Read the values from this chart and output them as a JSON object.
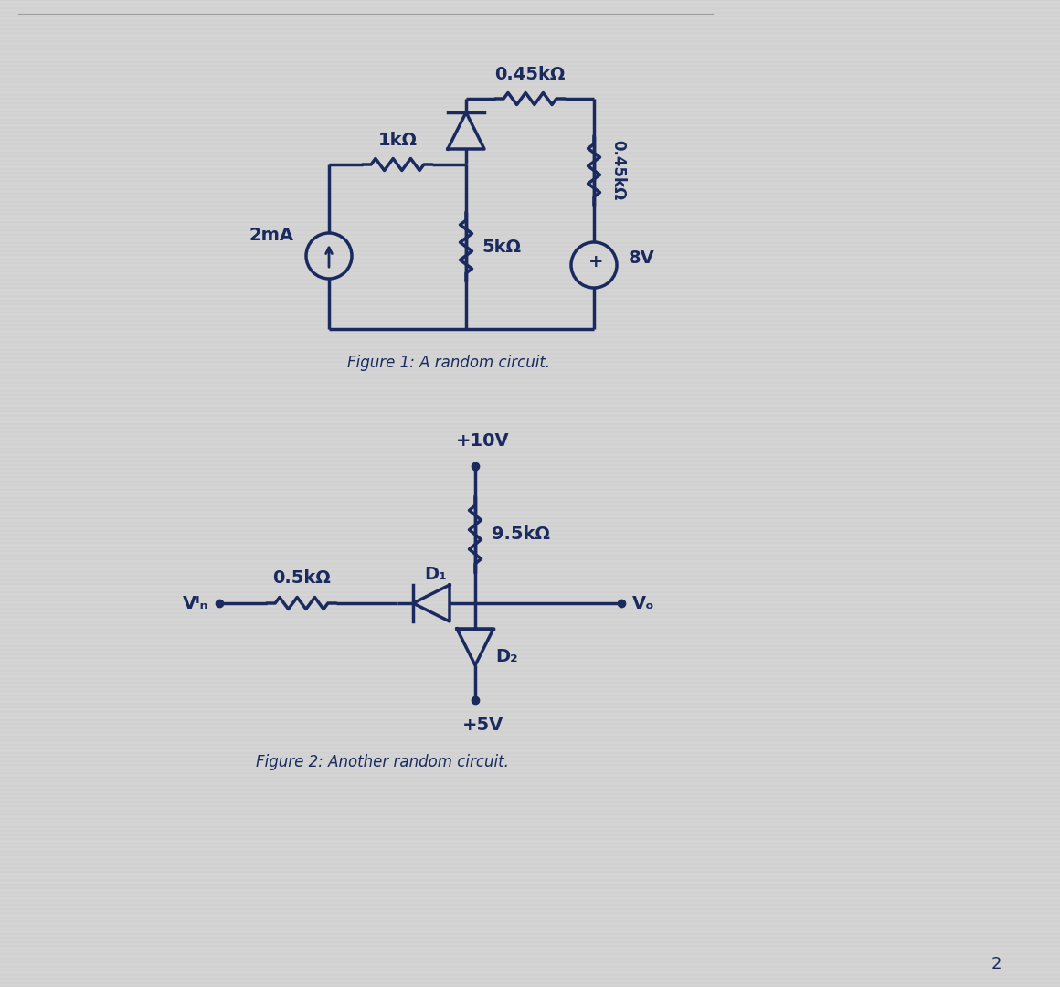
{
  "bg_color": "#d4d4d4",
  "line_color": "#1a2a5e",
  "line_width": 2.5,
  "fig1_caption": "Figure 1: A random circuit.",
  "fig2_caption": "Figure 2: Another random circuit.",
  "page_number": "2",
  "labels": {
    "2mA": "2mA",
    "1k": "1kΩ",
    "0_45k_top": "0.45kΩ",
    "0_45k_right": "0.45kΩ",
    "5k": "5kΩ",
    "8V": "8V",
    "10V": "+10V",
    "9_5k": "9.5kΩ",
    "0_5k": "0.5kΩ",
    "D1": "D₁",
    "D2": "D₂",
    "Vin": "Vᴵₙ",
    "Vo": "Vₒ",
    "5V": "+5V"
  },
  "font_size_label": 14,
  "font_size_caption": 12,
  "font_size_small": 11
}
